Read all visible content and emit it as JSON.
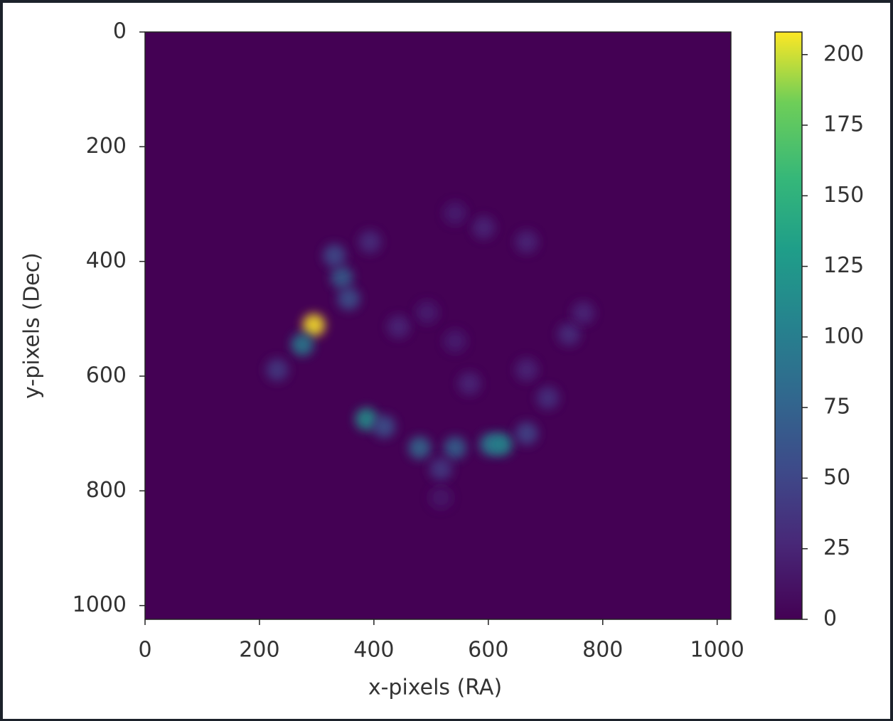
{
  "chart_data": {
    "type": "heatmap",
    "xlabel": "x-pixels (RA)",
    "ylabel": "y-pixels (Dec)",
    "colormap": "viridis",
    "background_value": 0,
    "x": [
      295,
      275,
      344,
      331,
      356,
      387,
      418,
      480,
      542,
      604,
      623,
      667,
      704,
      741,
      766,
      592,
      542,
      667,
      493,
      542,
      567,
      231,
      443,
      393,
      667,
      517,
      517
    ],
    "y": [
      511,
      545,
      428,
      390,
      465,
      675,
      688,
      725,
      725,
      719,
      719,
      700,
      638,
      527,
      490,
      341,
      316,
      366,
      489,
      539,
      613,
      589,
      514,
      366,
      589,
      762,
      812
    ],
    "values": [
      208,
      100,
      70,
      55,
      60,
      120,
      60,
      80,
      75,
      95,
      110,
      50,
      35,
      30,
      25,
      25,
      20,
      25,
      20,
      20,
      25,
      40,
      25,
      30,
      25,
      40,
      15
    ],
    "xlim": [
      0,
      1024
    ],
    "ylim": [
      1024,
      0
    ],
    "xticks": [
      0,
      200,
      400,
      600,
      800,
      1000
    ],
    "yticks": [
      0,
      200,
      400,
      600,
      800,
      1000
    ],
    "clim": [
      0,
      208
    ],
    "cticks": [
      0,
      25,
      50,
      75,
      100,
      125,
      150,
      175,
      200
    ]
  }
}
